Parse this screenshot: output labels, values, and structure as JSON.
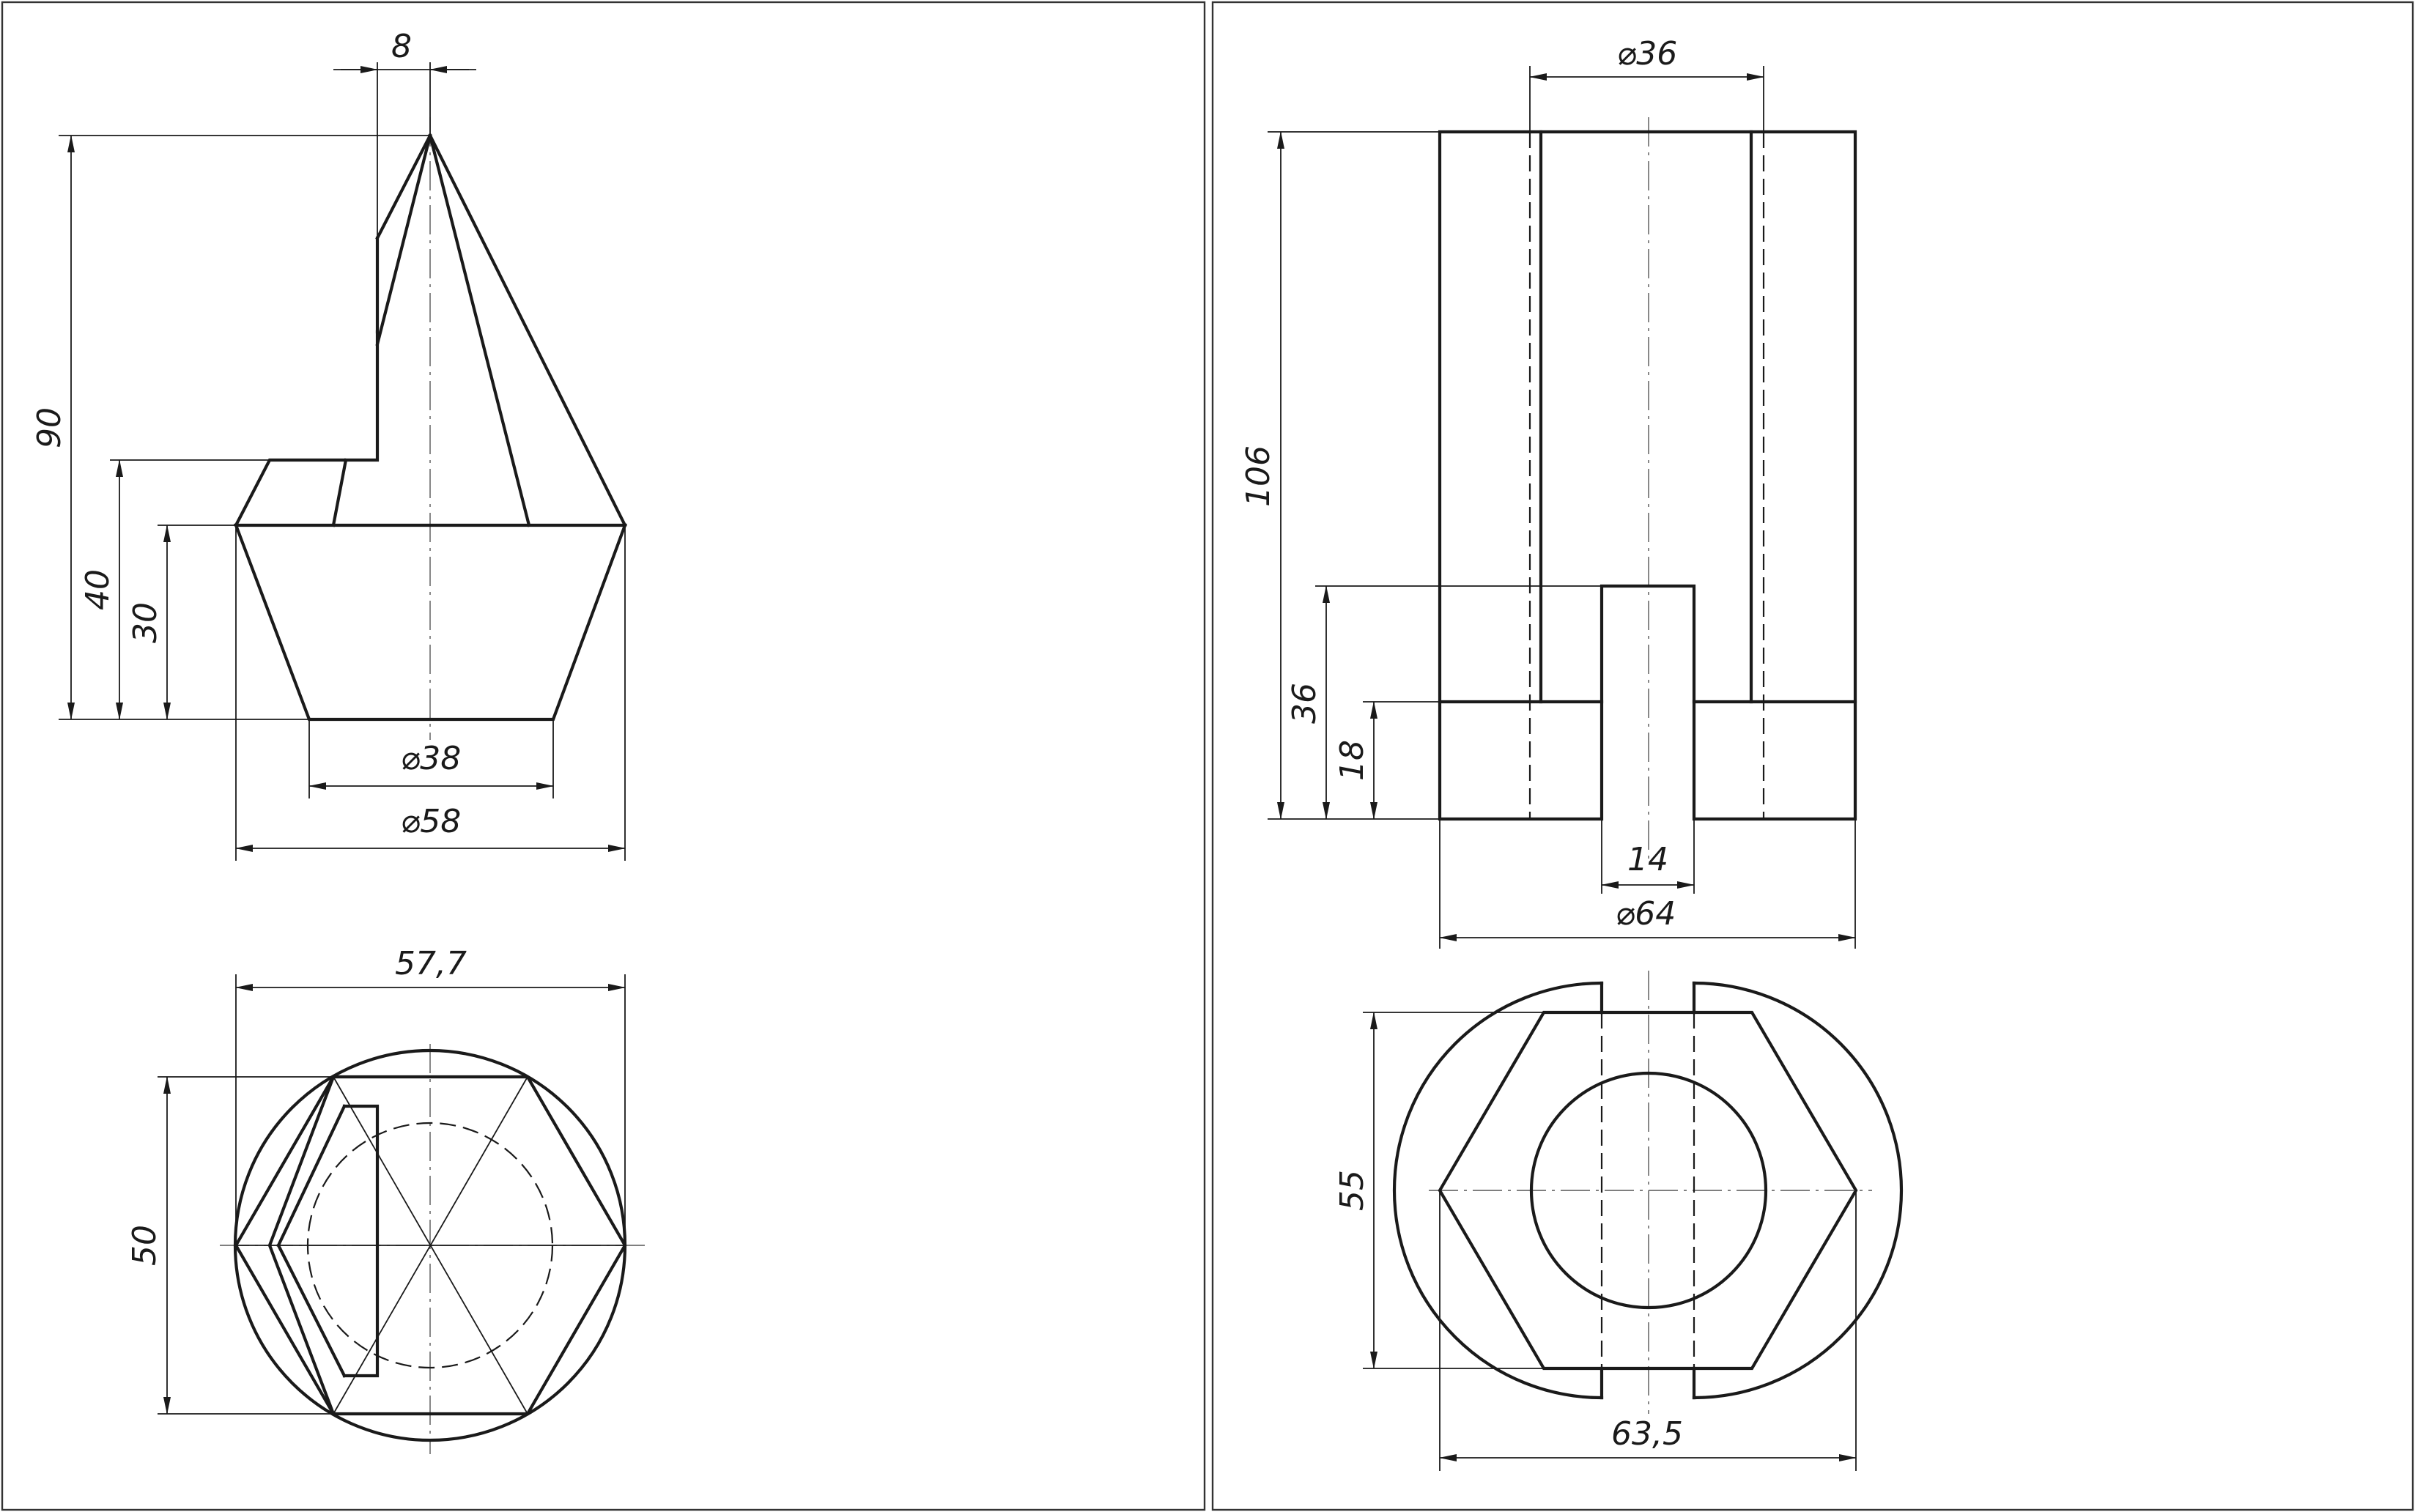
{
  "colors": {
    "line": "#1a1a1a",
    "background": "#ffffff",
    "center_line": "#555555"
  },
  "left_drawing": {
    "front_view": {
      "dim_top_offset": "8",
      "dim_total_height": "90",
      "dim_step_height": "40",
      "dim_frustum_height": "30",
      "dim_bottom_diameter": "⌀38",
      "dim_top_diameter": "⌀58"
    },
    "top_view": {
      "dim_hex_width": "57,7",
      "dim_flat_height": "50"
    }
  },
  "right_drawing": {
    "front_view": {
      "dim_bore": "⌀36",
      "dim_height": "106",
      "dim_slot_top": "36",
      "dim_step": "18",
      "dim_slot_width": "14",
      "dim_outer": "⌀64"
    },
    "top_view": {
      "dim_flats": "55",
      "dim_corners": "63,5"
    }
  }
}
